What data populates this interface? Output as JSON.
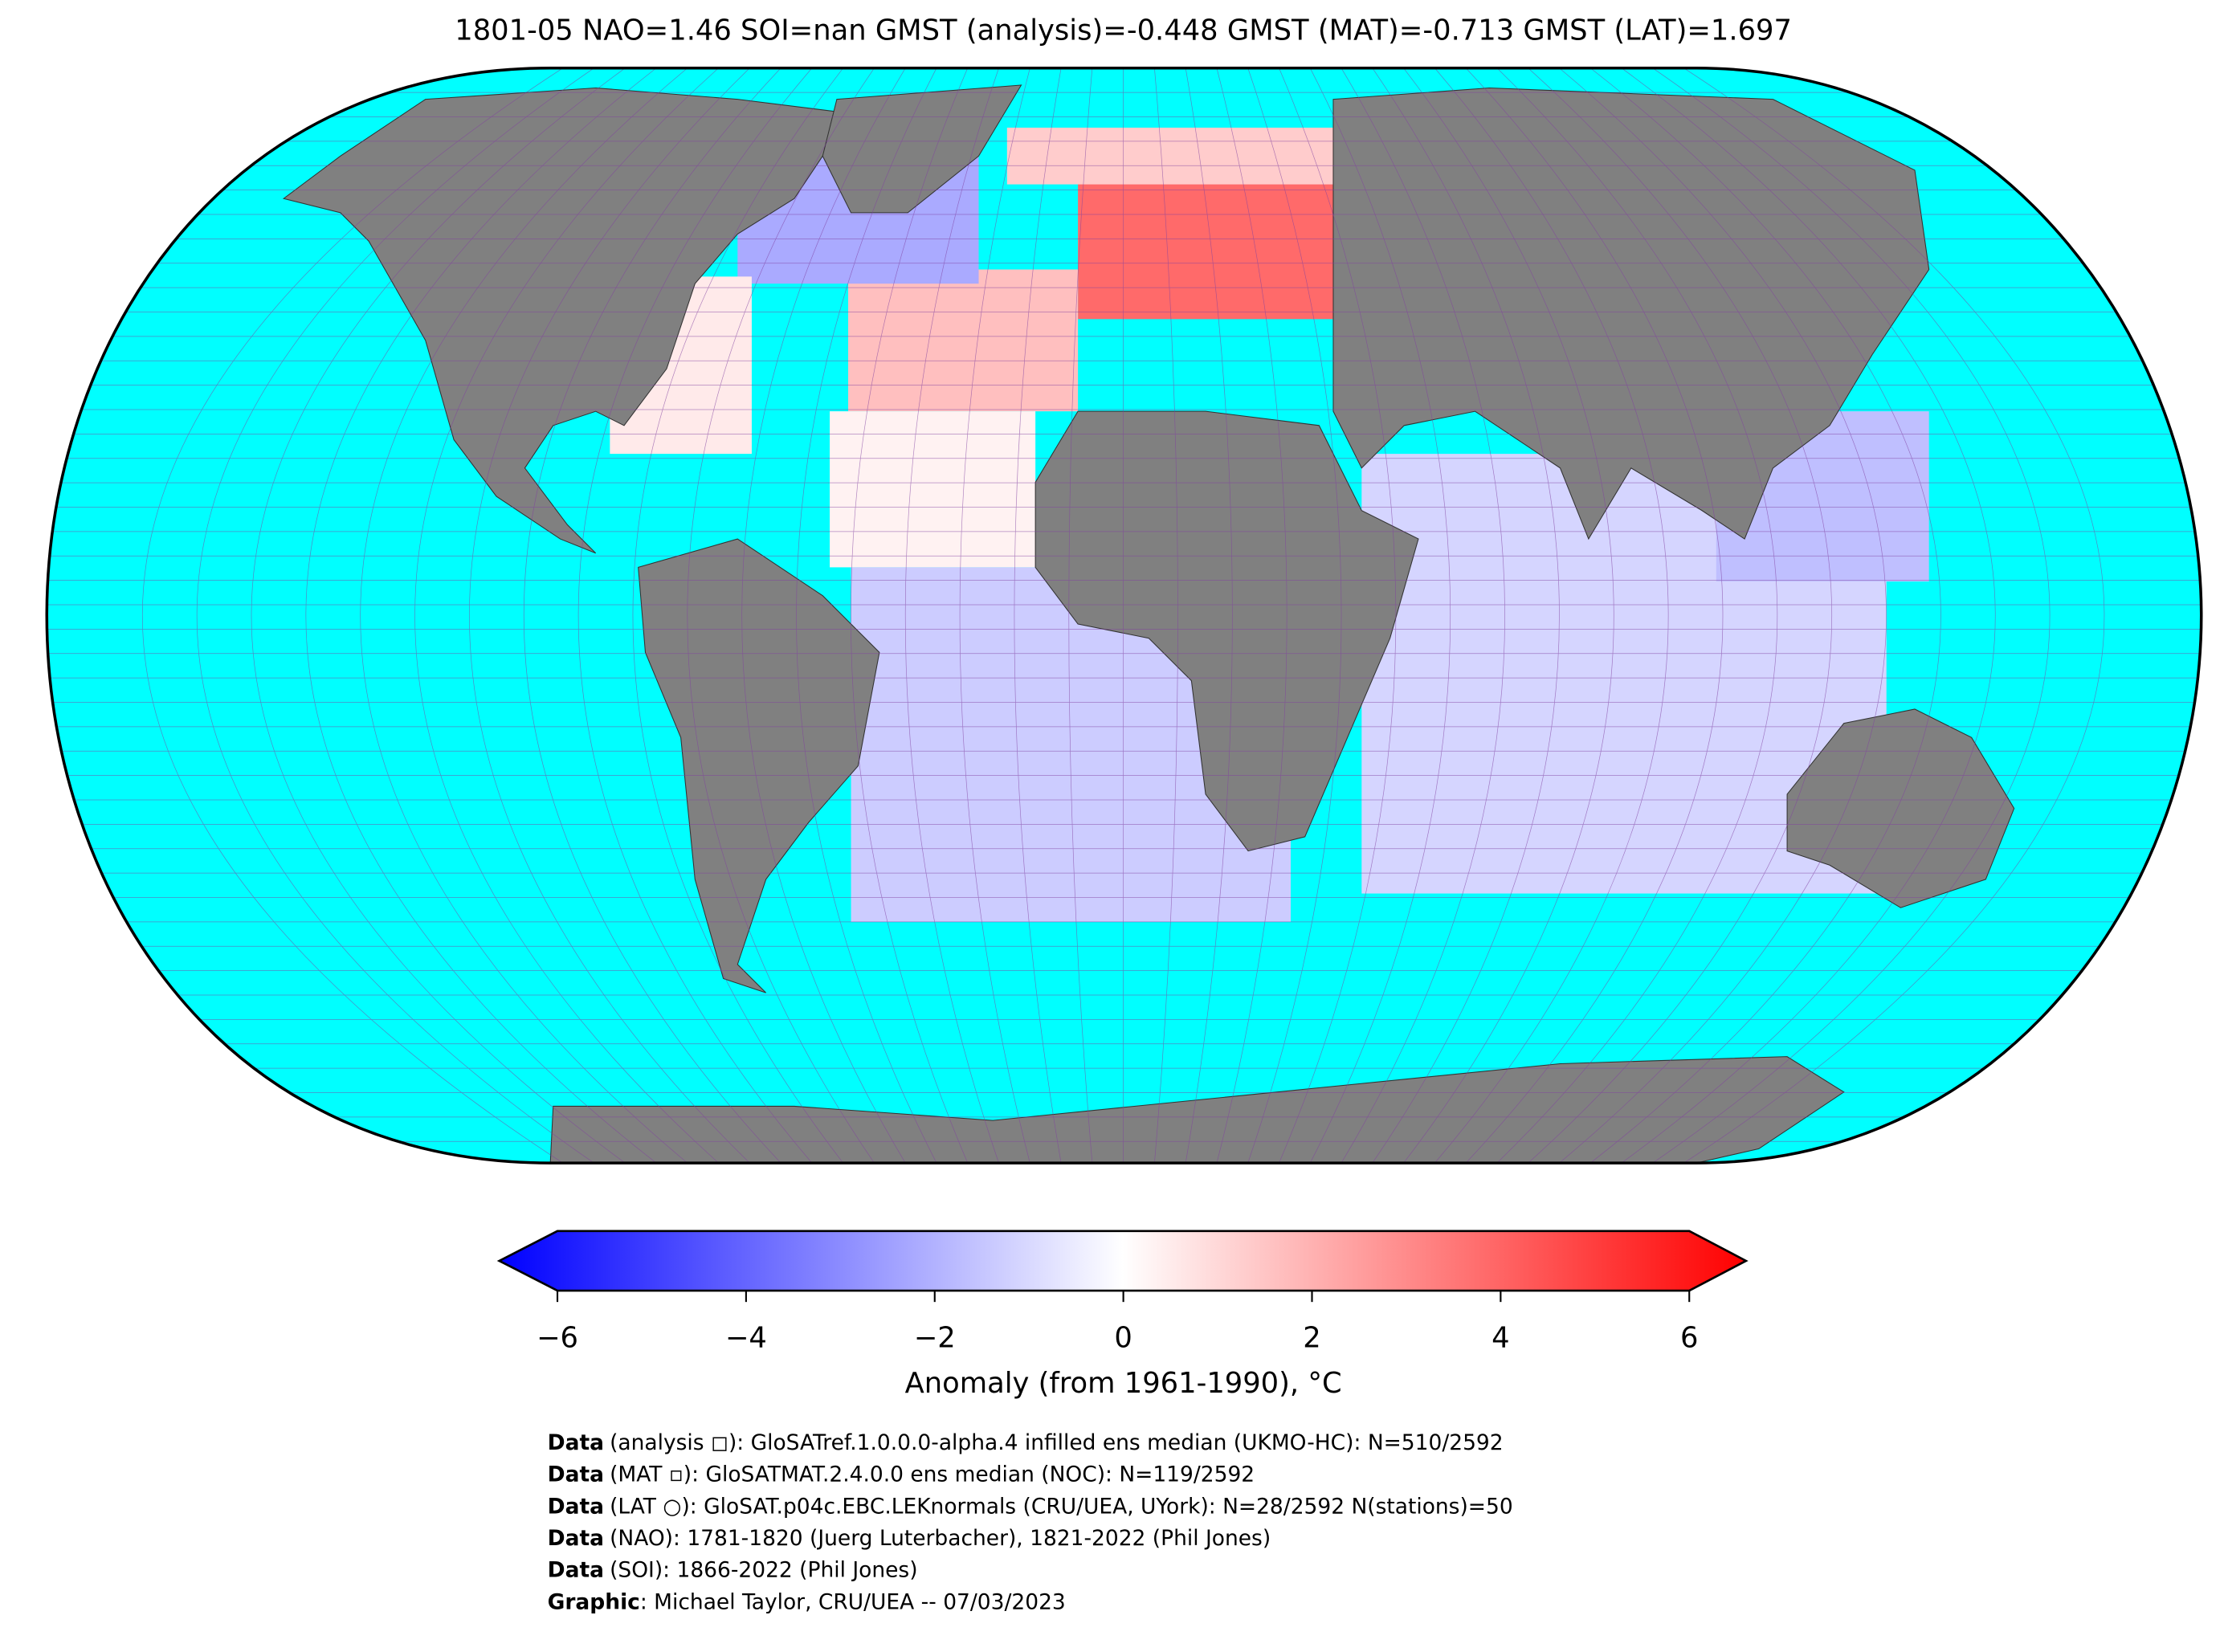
{
  "title": "1801-05 NAO=1.46 SOI=nan GMST (analysis)=-0.448 GMST (MAT)=-0.713 GMST (LAT)=1.697",
  "anomaly_cells": [
    3.5,
    1.2,
    1.5,
    0.3,
    -1.2,
    -1.0,
    -2.0,
    0.5,
    -1.5
  ],
  "colorbar": {
    "lim": [
      -6,
      6
    ],
    "ticks": [
      {
        "value": -6,
        "label": "−6"
      },
      {
        "value": -4,
        "label": "−4"
      },
      {
        "value": -2,
        "label": "−2"
      },
      0,
      2,
      4,
      6
    ],
    "label": "Anomaly (from 1961-1990), °C"
  },
  "credits": [
    {
      "bold": "Data",
      "text": "(analysis ◻): GloSATref.1.0.0.0-alpha.4 infilled ens median (UKMO-HC): N=510/2592"
    },
    {
      "bold": "Data",
      "text": "(MAT ▫): GloSATMAT.2.4.0.0 ens median (NOC): N=119/2592"
    },
    {
      "bold": "Data",
      "text": "(LAT ○): GloSAT.p04c.EBC.LEKnormals (CRU/UEA, UYork): N=28/2592 N(stations)=50"
    },
    {
      "bold": "Data",
      "text": "(NAO): 1781-1820 (Juerg Luterbacher), 1821-2022 (Phil Jones)"
    },
    {
      "bold": "Data",
      "text": "(SOI): 1866-2022 (Phil Jones)"
    },
    {
      "bold": "Graphic",
      "text": ": Michael Taylor, CRU/UEA -- 07/03/2023"
    }
  ]
}
